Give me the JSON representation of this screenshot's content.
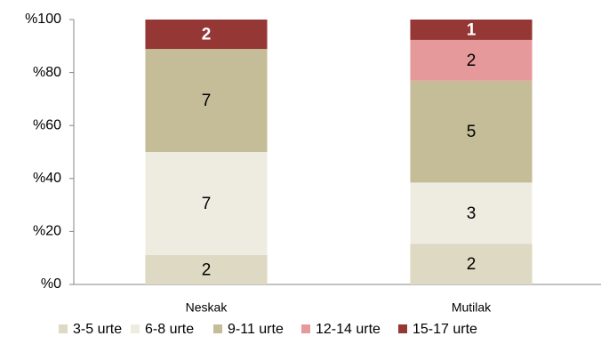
{
  "chart_data": {
    "type": "bar",
    "stacking": "percent",
    "categories": [
      "Neskak",
      "Mutilak"
    ],
    "series": [
      {
        "name": "3-5 urte",
        "color": "#ddd9c3",
        "values": [
          2,
          2
        ]
      },
      {
        "name": "6-8 urte",
        "color": "#eeece1",
        "values": [
          7,
          3
        ]
      },
      {
        "name": "9-11 urte",
        "color": "#c4bd97",
        "values": [
          7,
          5
        ]
      },
      {
        "name": "12-14 urte",
        "color": "#e6999a",
        "values": [
          0,
          2
        ]
      },
      {
        "name": "15-17 urte",
        "color": "#953735",
        "values": [
          2,
          1
        ]
      }
    ],
    "ylim": [
      0,
      100
    ],
    "yticks": [
      {
        "value": 0,
        "label": "%0"
      },
      {
        "value": 20,
        "label": "%20"
      },
      {
        "value": 40,
        "label": "%40"
      },
      {
        "value": 60,
        "label": "%60"
      },
      {
        "value": 80,
        "label": "%80"
      },
      {
        "value": 100,
        "label": "%100"
      }
    ],
    "legend": "bottom",
    "grid": false
  }
}
